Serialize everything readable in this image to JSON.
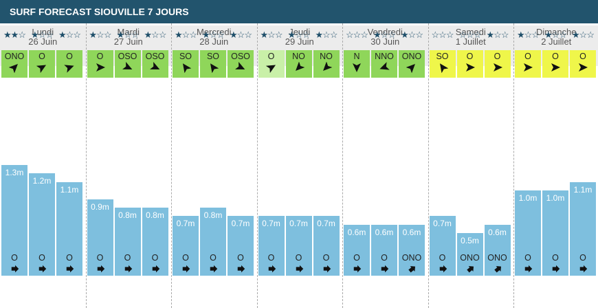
{
  "title": "SURF FORECAST SIOUVILLE 7 JOURS",
  "colors": {
    "title_bg": "#22546d",
    "bar": "#7ebfde",
    "wind_green": "#8fd65a",
    "wind_lightgreen": "#c9f0a8",
    "wind_yellow": "#eff64a"
  },
  "days": [
    {
      "name": "Lundi",
      "date": "26 Juin"
    },
    {
      "name": "Mardi",
      "date": "27 Juin"
    },
    {
      "name": "Mercredi",
      "date": "28 Juin"
    },
    {
      "name": "Jeudi",
      "date": "29 Juin"
    },
    {
      "name": "Vendredi",
      "date": "30 Juin"
    },
    {
      "name": "Samedi",
      "date": "1 Juillet"
    },
    {
      "name": "Dimanche",
      "date": "2 Juillet"
    }
  ],
  "chart_data": {
    "type": "bar",
    "title": "SURF FORECAST SIOUVILLE 7 JOURS",
    "unit": "m",
    "slots": [
      {
        "day": 0,
        "stars": 2,
        "wind_dir": "ONO",
        "wind_color": "green",
        "wind_angle": 315,
        "height": 1.3,
        "label": "1.3m",
        "swell_dir": "O",
        "swell_angle": 0
      },
      {
        "day": 0,
        "stars": 1,
        "wind_dir": "O",
        "wind_color": "green",
        "wind_angle": 330,
        "height": 1.2,
        "label": "1.2m",
        "swell_dir": "O",
        "swell_angle": 0
      },
      {
        "day": 0,
        "stars": 1,
        "wind_dir": "O",
        "wind_color": "green",
        "wind_angle": 340,
        "height": 1.1,
        "label": "1.1m",
        "swell_dir": "O",
        "swell_angle": 0
      },
      {
        "day": 1,
        "stars": 1,
        "wind_dir": "O",
        "wind_color": "green",
        "wind_angle": 0,
        "height": 0.9,
        "label": "0.9m",
        "swell_dir": "O",
        "swell_angle": 0
      },
      {
        "day": 1,
        "stars": 1,
        "wind_dir": "OSO",
        "wind_color": "green",
        "wind_angle": 25,
        "height": 0.8,
        "label": "0.8m",
        "swell_dir": "O",
        "swell_angle": 0
      },
      {
        "day": 1,
        "stars": 1,
        "wind_dir": "OSO",
        "wind_color": "green",
        "wind_angle": 25,
        "height": 0.8,
        "label": "0.8m",
        "swell_dir": "O",
        "swell_angle": 0
      },
      {
        "day": 2,
        "stars": 1,
        "wind_dir": "SO",
        "wind_color": "green",
        "wind_angle": 235,
        "height": 0.7,
        "label": "0.7m",
        "swell_dir": "O",
        "swell_angle": 0
      },
      {
        "day": 2,
        "stars": 1,
        "wind_dir": "SO",
        "wind_color": "green",
        "wind_angle": 235,
        "height": 0.8,
        "label": "0.8m",
        "swell_dir": "O",
        "swell_angle": 0
      },
      {
        "day": 2,
        "stars": 1,
        "wind_dir": "OSO",
        "wind_color": "green",
        "wind_angle": 25,
        "height": 0.7,
        "label": "0.7m",
        "swell_dir": "O",
        "swell_angle": 0
      },
      {
        "day": 3,
        "stars": 1,
        "wind_dir": "O",
        "wind_color": "lightgreen",
        "wind_angle": 330,
        "height": 0.7,
        "label": "0.7m",
        "swell_dir": "O",
        "swell_angle": 0
      },
      {
        "day": 3,
        "stars": 1,
        "wind_dir": "NO",
        "wind_color": "green",
        "wind_angle": 135,
        "height": 0.7,
        "label": "0.7m",
        "swell_dir": "O",
        "swell_angle": 0
      },
      {
        "day": 3,
        "stars": 1,
        "wind_dir": "NO",
        "wind_color": "green",
        "wind_angle": 135,
        "height": 0.7,
        "label": "0.7m",
        "swell_dir": "O",
        "swell_angle": 0
      },
      {
        "day": 4,
        "stars": 0,
        "wind_dir": "N",
        "wind_color": "green",
        "wind_angle": 90,
        "height": 0.6,
        "label": "0.6m",
        "swell_dir": "O",
        "swell_angle": 0
      },
      {
        "day": 4,
        "stars": 1,
        "wind_dir": "NNO",
        "wind_color": "green",
        "wind_angle": 160,
        "height": 0.6,
        "label": "0.6m",
        "swell_dir": "O",
        "swell_angle": 0
      },
      {
        "day": 4,
        "stars": 1,
        "wind_dir": "ONO",
        "wind_color": "green",
        "wind_angle": 315,
        "height": 0.6,
        "label": "0.6m",
        "swell_dir": "ONO",
        "swell_angle": 320
      },
      {
        "day": 5,
        "stars": 0,
        "wind_dir": "SO",
        "wind_color": "yellow",
        "wind_angle": 235,
        "height": 0.7,
        "label": "0.7m",
        "swell_dir": "O",
        "swell_angle": 0
      },
      {
        "day": 5,
        "stars": 0,
        "wind_dir": "O",
        "wind_color": "yellow",
        "wind_angle": 0,
        "height": 0.5,
        "label": "0.5m",
        "swell_dir": "ONO",
        "swell_angle": 320
      },
      {
        "day": 5,
        "stars": 1,
        "wind_dir": "O",
        "wind_color": "yellow",
        "wind_angle": 0,
        "height": 0.6,
        "label": "0.6m",
        "swell_dir": "ONO",
        "swell_angle": 320
      },
      {
        "day": 6,
        "stars": 1,
        "wind_dir": "O",
        "wind_color": "yellow",
        "wind_angle": 0,
        "height": 1.0,
        "label": "1.0m",
        "swell_dir": "O",
        "swell_angle": 0
      },
      {
        "day": 6,
        "stars": 1,
        "wind_dir": "O",
        "wind_color": "yellow",
        "wind_angle": 0,
        "height": 1.0,
        "label": "1.0m",
        "swell_dir": "O",
        "swell_angle": 0
      },
      {
        "day": 6,
        "stars": 1,
        "wind_dir": "O",
        "wind_color": "yellow",
        "wind_angle": 0,
        "height": 1.1,
        "label": "1.1m",
        "swell_dir": "O",
        "swell_angle": 0
      }
    ]
  }
}
